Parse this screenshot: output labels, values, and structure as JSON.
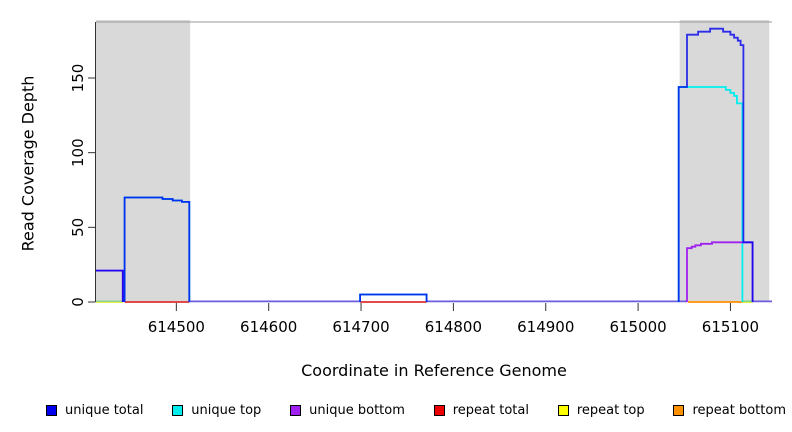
{
  "figure": {
    "background": "#ffffff"
  },
  "chart_data": {
    "type": "line",
    "title": "",
    "xlabel": "Coordinate in Reference Genome",
    "ylabel": "Read Coverage Depth",
    "xlim": [
      614413,
      615145
    ],
    "ylim": [
      0,
      187.5
    ],
    "x_ticks": [
      614500,
      614600,
      614700,
      614800,
      614900,
      615000,
      615100
    ],
    "y_ticks": [
      0,
      50,
      100,
      150
    ],
    "grid": false,
    "legend_position": "bottom",
    "shade_color": "#d9d9d9",
    "shaded_regions": [
      {
        "from": 614413,
        "to": 614515
      },
      {
        "from": 615045,
        "to": 615142
      }
    ],
    "series": [
      {
        "name": "unique total",
        "color": "#0000EE",
        "opacity": 0.8,
        "paths": [
          [
            [
              614413,
              21
            ],
            [
              614442,
              21
            ],
            [
              614442,
              0
            ]
          ],
          [
            [
              614444,
              0
            ],
            [
              614444,
              70
            ],
            [
              614485,
              70
            ],
            [
              614485,
              69
            ],
            [
              614496,
              69
            ],
            [
              614496,
              68
            ],
            [
              614506,
              68
            ],
            [
              614506,
              67
            ],
            [
              614514,
              67
            ],
            [
              614514,
              0
            ]
          ],
          [
            [
              614699,
              0
            ],
            [
              614699,
              5
            ],
            [
              614771,
              5
            ],
            [
              614771,
              0
            ]
          ],
          [
            [
              615044,
              0
            ],
            [
              615044,
              144
            ],
            [
              615053,
              144
            ],
            [
              615053,
              179
            ],
            [
              615065,
              179
            ],
            [
              615065,
              181
            ],
            [
              615078,
              181
            ],
            [
              615078,
              183
            ],
            [
              615092,
              183
            ],
            [
              615092,
              181
            ],
            [
              615100,
              181
            ],
            [
              615100,
              179
            ],
            [
              615104,
              179
            ],
            [
              615104,
              177
            ],
            [
              615108,
              177
            ],
            [
              615108,
              175
            ],
            [
              615111,
              175
            ],
            [
              615111,
              172
            ],
            [
              615114,
              172
            ],
            [
              615114,
              40
            ],
            [
              615124,
              40
            ],
            [
              615124,
              0
            ]
          ]
        ]
      },
      {
        "name": "unique top",
        "color": "#00EEEE",
        "opacity": 1,
        "paths": [
          [
            [
              614444,
              0
            ],
            [
              614444,
              70
            ],
            [
              614485,
              70
            ],
            [
              614485,
              69
            ],
            [
              614496,
              69
            ],
            [
              614496,
              68
            ],
            [
              614506,
              68
            ],
            [
              614506,
              67
            ],
            [
              614514,
              67
            ],
            [
              614514,
              0
            ]
          ],
          [
            [
              614699,
              0
            ],
            [
              614699,
              5
            ],
            [
              614771,
              5
            ],
            [
              614771,
              0
            ]
          ],
          [
            [
              615044,
              0
            ],
            [
              615044,
              144
            ],
            [
              615095,
              144
            ],
            [
              615095,
              142
            ],
            [
              615100,
              142
            ],
            [
              615100,
              140
            ],
            [
              615104,
              140
            ],
            [
              615104,
              138
            ],
            [
              615107,
              138
            ],
            [
              615107,
              133
            ],
            [
              615113,
              133
            ],
            [
              615113,
              0
            ]
          ]
        ]
      },
      {
        "name": "unique bottom",
        "color": "#A020F0",
        "opacity": 1,
        "paths": [
          [
            [
              614413,
              21
            ],
            [
              614442,
              21
            ],
            [
              614442,
              0
            ]
          ],
          [
            [
              615053,
              0
            ],
            [
              615053,
              36
            ],
            [
              615058,
              36
            ],
            [
              615058,
              37
            ],
            [
              615062,
              37
            ],
            [
              615062,
              38
            ],
            [
              615068,
              38
            ],
            [
              615068,
              39
            ],
            [
              615080,
              39
            ],
            [
              615080,
              40
            ],
            [
              615124,
              40
            ],
            [
              615124,
              0
            ]
          ]
        ]
      },
      {
        "name": "repeat total",
        "color": "#E03030",
        "opacity": 1,
        "paths": [
          [
            [
              614444,
              0
            ],
            [
              614514,
              0
            ]
          ],
          [
            [
              614699,
              0
            ],
            [
              614771,
              0
            ]
          ]
        ]
      },
      {
        "name": "repeat top",
        "color": "#FFFF00",
        "opacity": 1,
        "paths": [
          [
            [
              614413,
              0
            ],
            [
              614442,
              0
            ]
          ],
          [
            [
              615113,
              0
            ],
            [
              615124,
              0
            ]
          ]
        ]
      },
      {
        "name": "repeat bottom",
        "color": "#FF9100",
        "opacity": 1,
        "paths": [
          [
            [
              615054,
              0
            ],
            [
              615113,
              0
            ]
          ]
        ]
      }
    ],
    "baseline_blend_segments": [
      {
        "from": 614413,
        "to": 614442,
        "color": "#8fd48f"
      },
      {
        "from": 614514,
        "to": 614699,
        "color": "#6a5be0"
      },
      {
        "from": 614771,
        "to": 615053,
        "color": "#6a5be0"
      },
      {
        "from": 615113,
        "to": 615124,
        "color": "#7fd87f"
      },
      {
        "from": 615124,
        "to": 615145,
        "color": "#6a5be0"
      }
    ],
    "legend": [
      {
        "label": "unique total",
        "color": "#0000EE"
      },
      {
        "label": "unique top",
        "color": "#00EEEE"
      },
      {
        "label": "unique bottom",
        "color": "#A020F0"
      },
      {
        "label": "repeat total",
        "color": "#EE0000"
      },
      {
        "label": "repeat top",
        "color": "#FFFF00"
      },
      {
        "label": "repeat bottom",
        "color": "#FF9100"
      }
    ]
  }
}
